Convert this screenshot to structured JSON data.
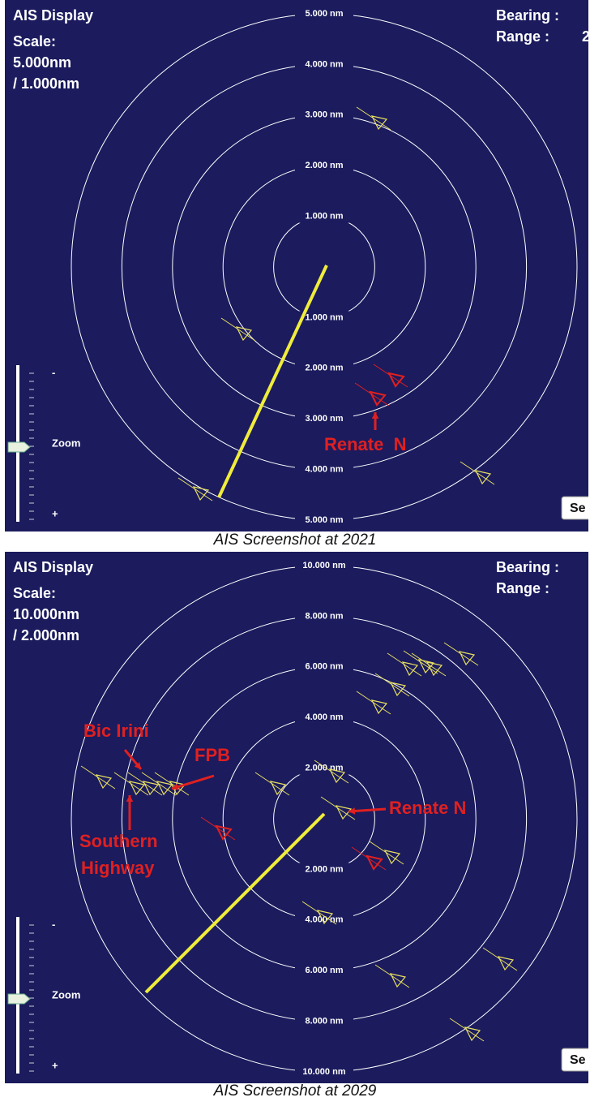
{
  "panels": [
    {
      "title": "AIS Display",
      "scale_label": "Scale:",
      "scale": "5.000nm",
      "scale_sub": "/ 1.000nm",
      "bearing": "Bearing :",
      "range": "Range :",
      "range_value": "2",
      "ring_labels": [
        "5.000 nm",
        "4.000 nm",
        "3.000 nm",
        "2.000 nm",
        "1.000 nm",
        "1.000 nm",
        "2.000 nm",
        "3.000 nm",
        "4.000 nm",
        "5.000 nm"
      ],
      "zoom": "Zoom",
      "zoom_minus": "-",
      "zoom_plus": "+",
      "button": "Se",
      "annotations": [
        "Renate  N"
      ],
      "caption": "AIS Screenshot at 2021"
    },
    {
      "title": "AIS Display",
      "scale_label": "Scale:",
      "scale": "10.000nm",
      "scale_sub": "/ 2.000nm",
      "bearing": "Bearing :",
      "range": "Range :",
      "ring_labels": [
        "10.000 nm",
        "8.000 nm",
        "6.000 nm",
        "4.000 nm",
        "2.000 nm",
        "2.000 nm",
        "4.000 nm",
        "6.000 nm",
        "8.000 nm",
        "10.000 nm"
      ],
      "zoom": "Zoom",
      "zoom_minus": "-",
      "zoom_plus": "+",
      "button": "Se",
      "annotations": [
        "Bic Irini",
        "FPB",
        "Southern",
        "Highway",
        "Renate N"
      ],
      "caption": "AIS Screenshot at 2029"
    }
  ]
}
